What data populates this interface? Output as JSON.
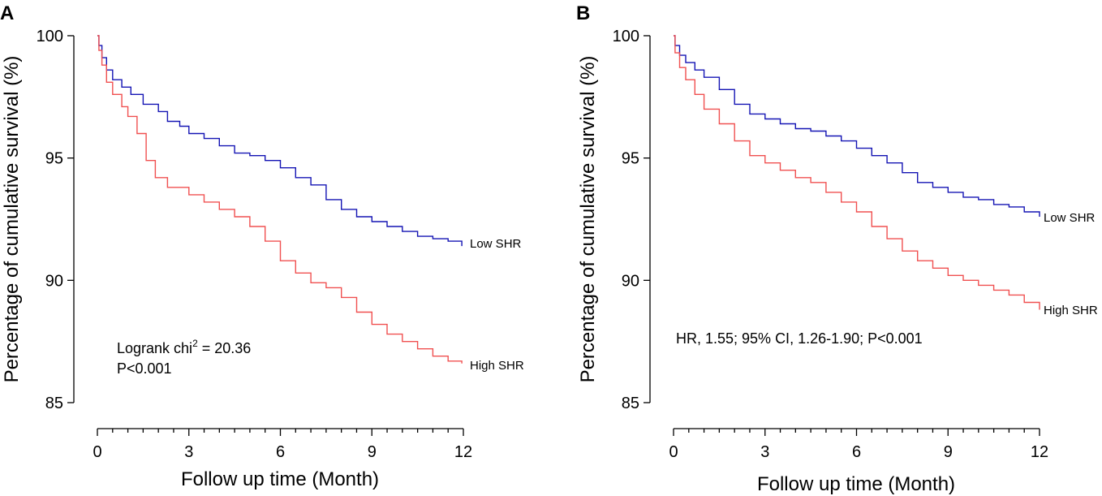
{
  "chart_data": [
    {
      "type": "line",
      "panel_label": "A",
      "xlabel": "Follow up time (Month)",
      "ylabel": "Percentage of cumulative survival (%)",
      "xlim": [
        0,
        12
      ],
      "ylim": [
        85,
        100
      ],
      "xticks": [
        0,
        3,
        6,
        9,
        12
      ],
      "yticks": [
        85,
        90,
        95,
        100
      ],
      "series": [
        {
          "name": "Low SHR",
          "color": "#1414b4",
          "points": [
            [
              0,
              100
            ],
            [
              0.05,
              99.6
            ],
            [
              0.15,
              99.1
            ],
            [
              0.3,
              98.6
            ],
            [
              0.5,
              98.2
            ],
            [
              0.8,
              97.9
            ],
            [
              1.1,
              97.6
            ],
            [
              1.5,
              97.2
            ],
            [
              2.0,
              96.9
            ],
            [
              2.3,
              96.5
            ],
            [
              2.7,
              96.3
            ],
            [
              3.0,
              96.0
            ],
            [
              3.5,
              95.8
            ],
            [
              4.0,
              95.5
            ],
            [
              4.5,
              95.2
            ],
            [
              5.0,
              95.1
            ],
            [
              5.5,
              94.9
            ],
            [
              6.0,
              94.6
            ],
            [
              6.5,
              94.2
            ],
            [
              7.0,
              93.9
            ],
            [
              7.5,
              93.3
            ],
            [
              8.0,
              92.9
            ],
            [
              8.5,
              92.6
            ],
            [
              9.0,
              92.4
            ],
            [
              9.5,
              92.2
            ],
            [
              10.0,
              92.0
            ],
            [
              10.5,
              91.8
            ],
            [
              11.0,
              91.7
            ],
            [
              11.5,
              91.6
            ],
            [
              11.95,
              91.4
            ]
          ]
        },
        {
          "name": "High SHR",
          "color": "#f05050",
          "points": [
            [
              0,
              100
            ],
            [
              0.05,
              99.4
            ],
            [
              0.15,
              98.8
            ],
            [
              0.3,
              98.1
            ],
            [
              0.5,
              97.6
            ],
            [
              0.8,
              97.1
            ],
            [
              1.0,
              96.7
            ],
            [
              1.3,
              96.0
            ],
            [
              1.6,
              94.9
            ],
            [
              1.9,
              94.2
            ],
            [
              2.3,
              93.8
            ],
            [
              3.0,
              93.5
            ],
            [
              3.5,
              93.2
            ],
            [
              4.0,
              92.9
            ],
            [
              4.5,
              92.6
            ],
            [
              5.0,
              92.2
            ],
            [
              5.5,
              91.6
            ],
            [
              6.0,
              90.8
            ],
            [
              6.5,
              90.3
            ],
            [
              7.0,
              89.9
            ],
            [
              7.5,
              89.7
            ],
            [
              8.0,
              89.3
            ],
            [
              8.5,
              88.7
            ],
            [
              9.0,
              88.2
            ],
            [
              9.5,
              87.8
            ],
            [
              10.0,
              87.5
            ],
            [
              10.5,
              87.2
            ],
            [
              11.0,
              86.9
            ],
            [
              11.5,
              86.7
            ],
            [
              11.95,
              86.6
            ]
          ]
        }
      ],
      "annotations": {
        "stat_line1_prefix": "Logrank chi",
        "stat_line1_sup": "2",
        "stat_line1_suffix": " = 20.36",
        "stat_line2": "P<0.001"
      }
    },
    {
      "type": "line",
      "panel_label": "B",
      "xlabel": "Follow up time (Month)",
      "ylabel": "Percentage of cumulative survival (%)",
      "xlim": [
        0,
        12
      ],
      "ylim": [
        85,
        100
      ],
      "xticks": [
        0,
        3,
        6,
        9,
        12
      ],
      "yticks": [
        85,
        90,
        95,
        100
      ],
      "series": [
        {
          "name": "Low SHR",
          "color": "#1414b4",
          "points": [
            [
              0,
              100
            ],
            [
              0.05,
              99.6
            ],
            [
              0.2,
              99.2
            ],
            [
              0.4,
              98.9
            ],
            [
              0.7,
              98.6
            ],
            [
              1.0,
              98.3
            ],
            [
              1.5,
              97.8
            ],
            [
              2.0,
              97.2
            ],
            [
              2.5,
              96.8
            ],
            [
              3.0,
              96.6
            ],
            [
              3.5,
              96.4
            ],
            [
              4.0,
              96.2
            ],
            [
              4.5,
              96.1
            ],
            [
              5.0,
              95.9
            ],
            [
              5.5,
              95.7
            ],
            [
              6.0,
              95.4
            ],
            [
              6.5,
              95.1
            ],
            [
              7.0,
              94.8
            ],
            [
              7.5,
              94.4
            ],
            [
              8.0,
              94.0
            ],
            [
              8.5,
              93.8
            ],
            [
              9.0,
              93.6
            ],
            [
              9.5,
              93.4
            ],
            [
              10.0,
              93.3
            ],
            [
              10.5,
              93.1
            ],
            [
              11.0,
              93.0
            ],
            [
              11.5,
              92.8
            ],
            [
              12.0,
              92.6
            ]
          ]
        },
        {
          "name": "High SHR",
          "color": "#f05050",
          "points": [
            [
              0,
              100
            ],
            [
              0.05,
              99.3
            ],
            [
              0.2,
              98.7
            ],
            [
              0.4,
              98.2
            ],
            [
              0.7,
              97.6
            ],
            [
              1.0,
              97.0
            ],
            [
              1.5,
              96.4
            ],
            [
              2.0,
              95.7
            ],
            [
              2.5,
              95.1
            ],
            [
              3.0,
              94.8
            ],
            [
              3.5,
              94.5
            ],
            [
              4.0,
              94.2
            ],
            [
              4.5,
              94.0
            ],
            [
              5.0,
              93.6
            ],
            [
              5.5,
              93.2
            ],
            [
              6.0,
              92.8
            ],
            [
              6.5,
              92.2
            ],
            [
              7.0,
              91.7
            ],
            [
              7.5,
              91.2
            ],
            [
              8.0,
              90.8
            ],
            [
              8.5,
              90.5
            ],
            [
              9.0,
              90.2
            ],
            [
              9.5,
              90.0
            ],
            [
              10.0,
              89.8
            ],
            [
              10.5,
              89.6
            ],
            [
              11.0,
              89.4
            ],
            [
              11.5,
              89.1
            ],
            [
              12.0,
              88.8
            ]
          ]
        }
      ],
      "annotations": {
        "stat_line1": "HR, 1.55; 95% CI, 1.26-1.90; P<0.001"
      }
    }
  ]
}
